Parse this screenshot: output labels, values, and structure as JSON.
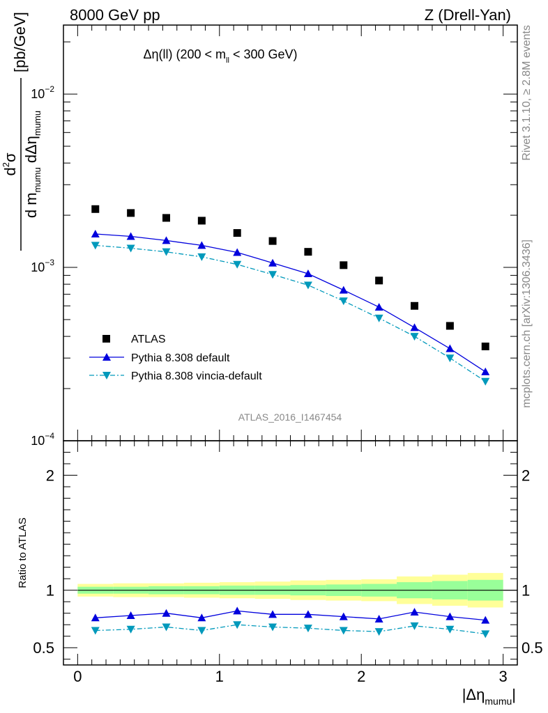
{
  "header": {
    "left": "8000 GeV pp",
    "right": "Z (Drell-Yan)"
  },
  "side": {
    "rivet": "Rivet 3.1.10, ≥ 2.8M events",
    "mcplots": "mcplots.cern.ch [arXiv:1306.3436]"
  },
  "chart_data": [
    {
      "type": "scatter",
      "panel": "main",
      "title": "Δη(ll) (200 < m_ll < 300 GeV)",
      "title_parts": {
        "pre": "Δη(ll) (200 < m",
        "sub": "ll",
        "post": " < 300 GeV)"
      },
      "ylabel": "d²σ / d m_mumu dΔη_mumu [pb/GeV]",
      "ylabel_parts": {
        "num": "d",
        "num_sup": "2",
        "num_sigma": "σ",
        "den_a": "d m",
        "den_sub1": "mumu",
        "den_b": " dΔη",
        "den_sub2": "mumu",
        "unit": "[pb/GeV]"
      },
      "yscale": "log",
      "ylim": [
        0.0001,
        0.025
      ],
      "xlim": [
        -0.1,
        3.1
      ],
      "yticks": [
        {
          "value": 0.0001,
          "base": "10",
          "exp": "−4"
        },
        {
          "value": 0.001,
          "base": "10",
          "exp": "−3"
        },
        {
          "value": 0.01,
          "base": "10",
          "exp": "−2"
        }
      ],
      "x": [
        0.125,
        0.375,
        0.625,
        0.875,
        1.125,
        1.375,
        1.625,
        1.875,
        2.125,
        2.375,
        2.625,
        2.875
      ],
      "series": [
        {
          "name": "ATLAS",
          "marker": "square",
          "color": "#000000",
          "values": [
            0.00217,
            0.00206,
            0.00193,
            0.00186,
            0.00158,
            0.00142,
            0.00123,
            0.00103,
            0.00084,
            0.0006,
            0.00046,
            0.00035
          ]
        },
        {
          "name": "Pythia 8.308 default",
          "marker": "triangle-up",
          "line": "solid",
          "color": "#0000dd",
          "values": [
            0.00156,
            0.00151,
            0.00143,
            0.00134,
            0.00122,
            0.00106,
            0.00092,
            0.00074,
            0.00059,
            0.00045,
            0.00034,
            0.00025
          ]
        },
        {
          "name": "Pythia 8.308 vincia-default",
          "marker": "triangle-down",
          "line": "dashdot",
          "color": "#0099bb",
          "values": [
            0.00134,
            0.00129,
            0.00123,
            0.00115,
            0.00104,
            0.00091,
            0.00079,
            0.00064,
            0.00051,
            0.0004,
            0.0003,
            0.00022
          ]
        }
      ],
      "legend_position": "bottom-left",
      "annotation": "ATLAS_2016_I1467454"
    },
    {
      "type": "line",
      "panel": "ratio",
      "ylabel": "Ratio to ATLAS",
      "ylim": [
        0.35,
        2.3
      ],
      "xlim": [
        -0.1,
        3.1
      ],
      "yticks": [
        0.5,
        1,
        2
      ],
      "xticks": [
        0,
        1,
        2,
        3
      ],
      "xlabel_parts": {
        "pre": "|Δη",
        "sub": "mumu",
        "post": "|"
      },
      "x": [
        0.125,
        0.375,
        0.625,
        0.875,
        1.125,
        1.375,
        1.625,
        1.875,
        2.125,
        2.375,
        2.625,
        2.875
      ],
      "bins": [
        0,
        0.25,
        0.5,
        0.75,
        1.0,
        1.25,
        1.5,
        1.75,
        2.0,
        2.25,
        2.5,
        2.75,
        3.0
      ],
      "band_inner": [
        0.03,
        0.03,
        0.035,
        0.035,
        0.04,
        0.04,
        0.045,
        0.05,
        0.055,
        0.07,
        0.08,
        0.09
      ],
      "band_outer": [
        0.055,
        0.06,
        0.06,
        0.065,
        0.07,
        0.075,
        0.085,
        0.09,
        0.095,
        0.12,
        0.135,
        0.15
      ],
      "band_colors": {
        "inner": "#99ff99",
        "outer": "#ffff99"
      },
      "series": [
        {
          "name": "Pythia 8.308 default",
          "marker": "triangle-up",
          "line": "solid",
          "color": "#0000dd",
          "values": [
            0.76,
            0.78,
            0.8,
            0.76,
            0.82,
            0.79,
            0.79,
            0.77,
            0.75,
            0.81,
            0.77,
            0.74
          ]
        },
        {
          "name": "Pythia 8.308 vincia-default",
          "marker": "triangle-down",
          "line": "dashdot",
          "color": "#0099bb",
          "values": [
            0.65,
            0.66,
            0.68,
            0.65,
            0.7,
            0.68,
            0.67,
            0.65,
            0.64,
            0.69,
            0.66,
            0.62
          ]
        }
      ]
    }
  ]
}
